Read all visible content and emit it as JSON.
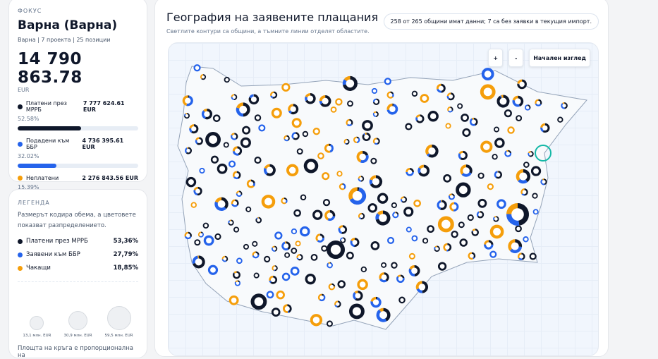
{
  "colors": {
    "paid": "#0f172a",
    "submitted": "#2563eb",
    "pending": "#f59e0b"
  },
  "focus": {
    "caption": "ФОКУС",
    "title": "Варна (Варна)",
    "subtitle": "Варна | 7 проекта | 25 позиции",
    "total": "14 790 863.78",
    "unit": "EUR",
    "items": [
      {
        "label": "Платени през МРРБ",
        "amount": "7 777 624.61 EUR",
        "pct": "52.58%",
        "fraction": 0.5258
      },
      {
        "label": "Подадени към ББР",
        "amount": "4 736 395.61 EUR",
        "pct": "32.02%",
        "fraction": 0.3202
      },
      {
        "label": "Неплатени",
        "amount": "2 276 843.56 EUR",
        "pct": "15.39%",
        "fraction": 0.1539
      }
    ]
  },
  "legend": {
    "caption": "ЛЕГЕНДА",
    "description": "Размерът кодира обема, а цветовете показват разпределението.",
    "items": [
      {
        "label": "Платени през МРРБ",
        "pct": "53,36%"
      },
      {
        "label": "Заявени към ББР",
        "pct": "27,79%"
      },
      {
        "label": "Чакащи",
        "pct": "18,85%"
      }
    ],
    "sizes": [
      "13,1 млн. EUR",
      "30,9 млн. EUR",
      "59,5 млн. EUR"
    ],
    "footer": "Площта на кръга е пропорционална на"
  },
  "main": {
    "title": "География на заявените плащания",
    "subtitle": "Светлите контури са общини, а тъмните линии отделят областите.",
    "status": "258 от 265 общини имат данни; 7 са без заявки в текущия импорт.",
    "zoom_in": "+",
    "zoom_out": "-",
    "reset": "Начален изглед"
  }
}
